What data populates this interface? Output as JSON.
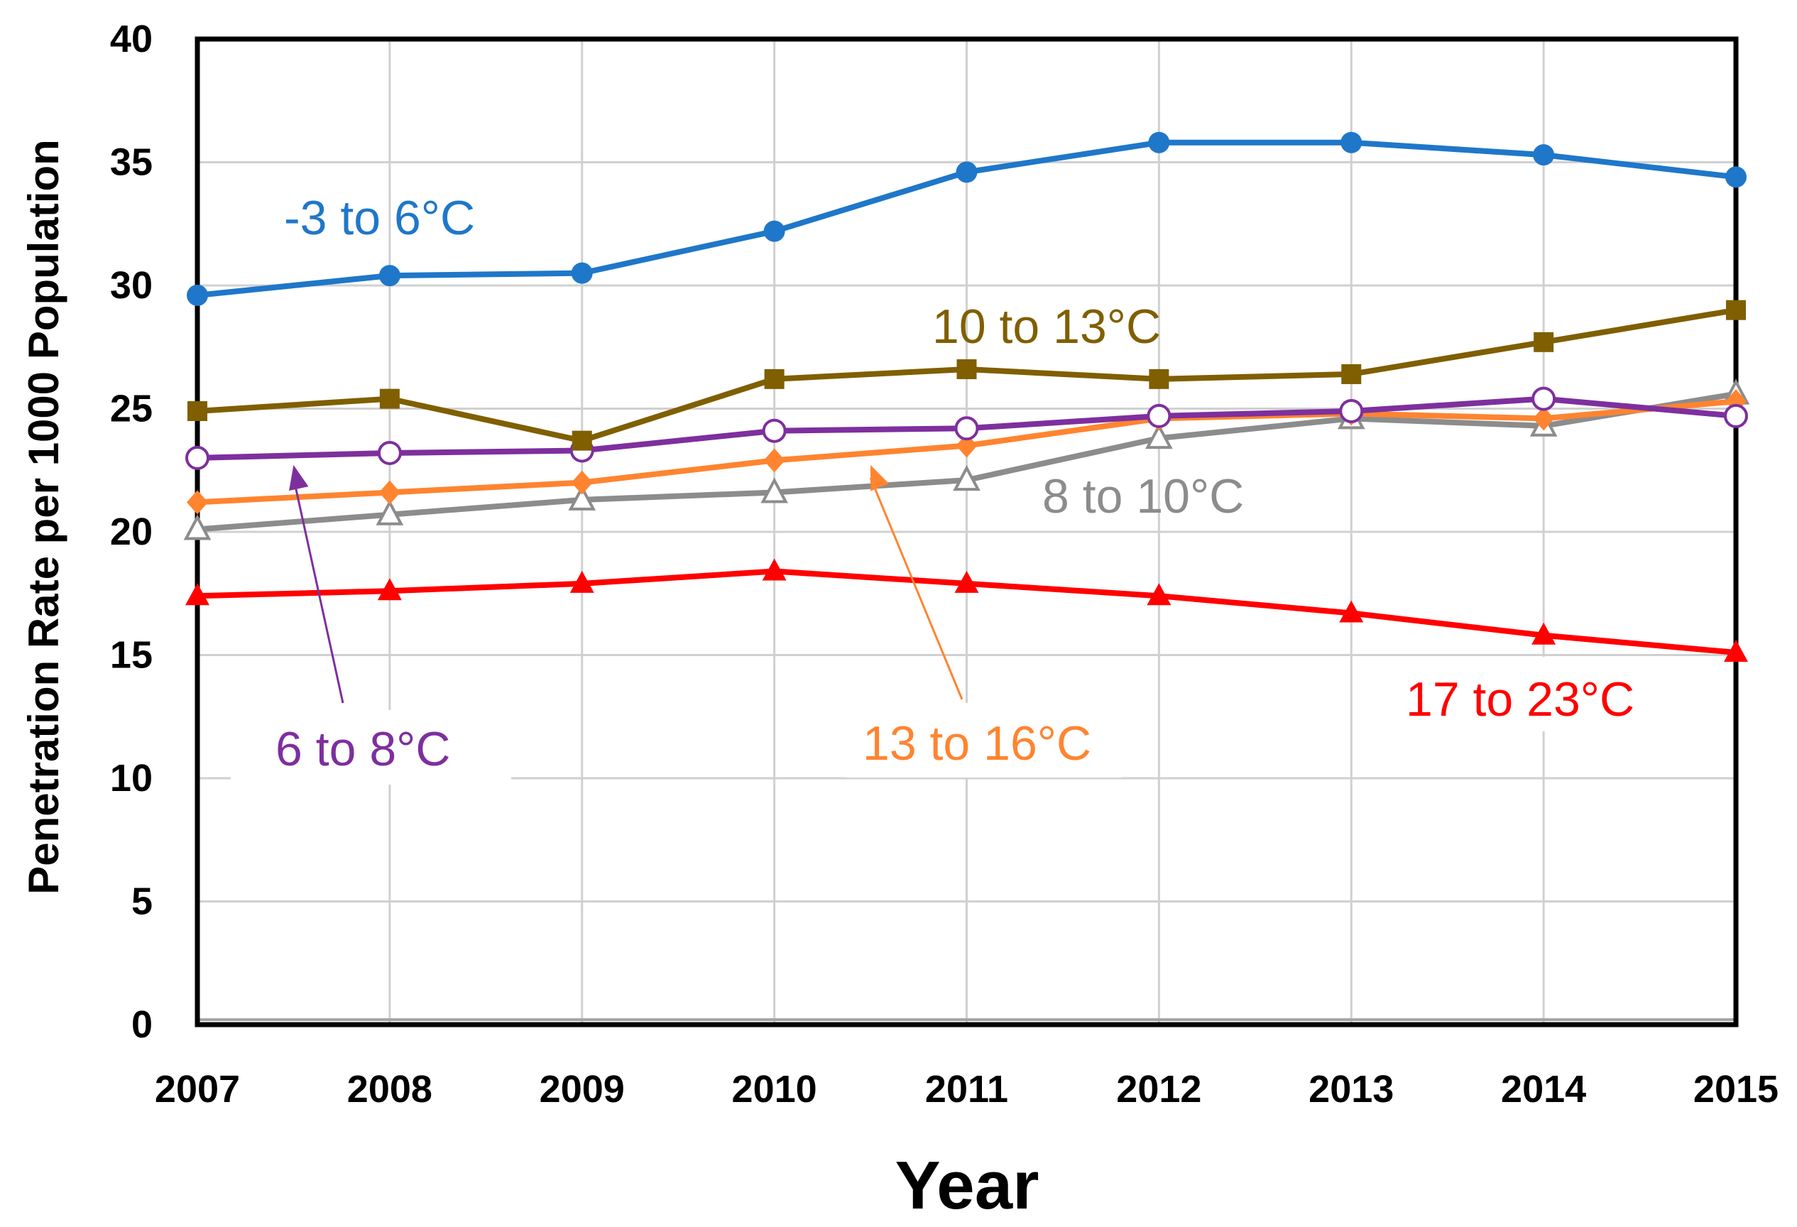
{
  "chart_data": {
    "type": "line",
    "title": "",
    "xlabel": "Year",
    "ylabel": "Penetration Rate per 1000 Population",
    "x": [
      2007,
      2008,
      2009,
      2010,
      2011,
      2012,
      2013,
      2014,
      2015
    ],
    "x_tick_labels": [
      "2007",
      "2008",
      "2009",
      "2010",
      "2011",
      "2012",
      "2013",
      "2014",
      "2015"
    ],
    "ylim": [
      0,
      40
    ],
    "y_ticks": [
      0,
      5,
      10,
      15,
      20,
      25,
      30,
      35,
      40
    ],
    "y_tick_labels": [
      "0",
      "5",
      "10",
      "15",
      "20",
      "25",
      "30",
      "35",
      "40"
    ],
    "grid": true,
    "legend": "inline labels",
    "series": [
      {
        "name": "-3 to 6°C",
        "color": "#1F77C9",
        "marker": "circle-filled",
        "values": [
          29.6,
          30.4,
          30.5,
          32.2,
          34.6,
          35.8,
          35.8,
          35.3,
          34.4
        ]
      },
      {
        "name": "10 to 13°C",
        "color": "#7F5F00",
        "marker": "square-filled",
        "values": [
          24.9,
          25.4,
          23.7,
          26.2,
          26.6,
          26.2,
          26.4,
          27.7,
          29.0
        ]
      },
      {
        "name": "6 to 8°C",
        "color": "#7E2F9E",
        "marker": "circle-open",
        "values": [
          23.0,
          23.2,
          23.3,
          24.1,
          24.2,
          24.7,
          24.9,
          25.4,
          24.7
        ]
      },
      {
        "name": "13 to 16°C",
        "color": "#FF8430",
        "marker": "diamond-filled",
        "values": [
          21.2,
          21.6,
          22.0,
          22.9,
          23.5,
          24.6,
          24.8,
          24.6,
          25.3
        ]
      },
      {
        "name": "8 to 10°C",
        "color": "#8C8C8C",
        "marker": "triangle-open",
        "values": [
          20.1,
          20.7,
          21.3,
          21.6,
          22.1,
          23.8,
          24.6,
          24.3,
          25.6
        ]
      },
      {
        "name": "17 to 23°C",
        "color": "#FF0000",
        "marker": "triangle-filled",
        "values": [
          17.4,
          17.6,
          17.9,
          18.4,
          17.9,
          17.4,
          16.7,
          15.8,
          15.1
        ]
      }
    ],
    "annotations": [
      {
        "text": "-3 to 6°C",
        "series": "-3 to 6°C"
      },
      {
        "text": "10 to 13°C",
        "series": "10 to 13°C"
      },
      {
        "text": "8 to 10°C",
        "series": "8 to 10°C"
      },
      {
        "text": "6 to 8°C",
        "series": "6 to 8°C",
        "arrow_to": [
          2007.5,
          23.0
        ]
      },
      {
        "text": "13 to 16°C",
        "series": "13 to 16°C",
        "arrow_to": [
          2010.5,
          23.0
        ]
      },
      {
        "text": "17 to 23°C",
        "series": "17 to 23°C"
      }
    ]
  }
}
